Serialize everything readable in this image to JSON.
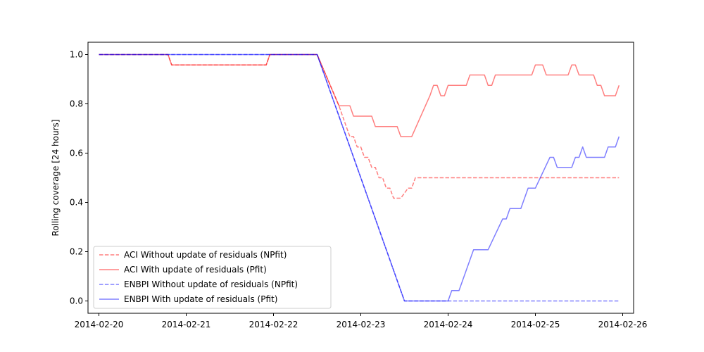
{
  "chart_data": {
    "type": "line",
    "title": "",
    "xlabel": "",
    "ylabel": "Rolling coverage [24 hours]",
    "xlim": [
      "2014-02-20",
      "2014-02-26"
    ],
    "ylim": [
      -0.05,
      1.05
    ],
    "grid": false,
    "legend_position": "lower-left",
    "x_ticks": [
      "2014-02-20",
      "2014-02-21",
      "2014-02-22",
      "2014-02-23",
      "2014-02-24",
      "2014-02-25",
      "2014-02-26"
    ],
    "y_ticks": [
      "0.0",
      "0.2",
      "0.4",
      "0.6",
      "0.8",
      "1.0"
    ],
    "series": [
      {
        "name": "ACI Without update of residuals (NPfit)",
        "color": "#ff0000",
        "style": "dashed",
        "points": [
          [
            "2014-02-20 00:00",
            1.0
          ],
          [
            "2014-02-20 19:00",
            1.0
          ],
          [
            "2014-02-20 20:00",
            0.958
          ],
          [
            "2014-02-21 22:00",
            0.958
          ],
          [
            "2014-02-21 23:00",
            1.0
          ],
          [
            "2014-02-22 12:00",
            1.0
          ],
          [
            "2014-02-22 18:00",
            0.792
          ],
          [
            "2014-02-22 19:00",
            0.75
          ],
          [
            "2014-02-22 20:00",
            0.708
          ],
          [
            "2014-02-22 21:00",
            0.667
          ],
          [
            "2014-02-22 22:00",
            0.667
          ],
          [
            "2014-02-22 23:00",
            0.625
          ],
          [
            "2014-02-23 00:00",
            0.625
          ],
          [
            "2014-02-23 01:00",
            0.583
          ],
          [
            "2014-02-23 02:00",
            0.583
          ],
          [
            "2014-02-23 03:00",
            0.542
          ],
          [
            "2014-02-23 04:00",
            0.542
          ],
          [
            "2014-02-23 05:00",
            0.5
          ],
          [
            "2014-02-23 06:00",
            0.5
          ],
          [
            "2014-02-23 07:00",
            0.458
          ],
          [
            "2014-02-23 08:00",
            0.458
          ],
          [
            "2014-02-23 09:00",
            0.417
          ],
          [
            "2014-02-23 11:00",
            0.417
          ],
          [
            "2014-02-23 13:00",
            0.458
          ],
          [
            "2014-02-23 14:00",
            0.458
          ],
          [
            "2014-02-23 15:00",
            0.5
          ],
          [
            "2014-02-25 23:00",
            0.5
          ]
        ]
      },
      {
        "name": "ACI With update of residuals (Pfit)",
        "color": "#ff0000",
        "style": "solid",
        "points": [
          [
            "2014-02-20 00:00",
            1.0
          ],
          [
            "2014-02-20 19:00",
            1.0
          ],
          [
            "2014-02-20 20:00",
            0.958
          ],
          [
            "2014-02-21 22:00",
            0.958
          ],
          [
            "2014-02-21 23:00",
            1.0
          ],
          [
            "2014-02-22 12:00",
            1.0
          ],
          [
            "2014-02-22 18:00",
            0.792
          ],
          [
            "2014-02-22 21:00",
            0.792
          ],
          [
            "2014-02-22 22:00",
            0.75
          ],
          [
            "2014-02-23 03:00",
            0.75
          ],
          [
            "2014-02-23 04:00",
            0.708
          ],
          [
            "2014-02-23 10:00",
            0.708
          ],
          [
            "2014-02-23 11:00",
            0.667
          ],
          [
            "2014-02-23 14:00",
            0.667
          ],
          [
            "2014-02-23 19:00",
            0.833
          ],
          [
            "2014-02-23 20:00",
            0.875
          ],
          [
            "2014-02-23 21:00",
            0.875
          ],
          [
            "2014-02-23 22:00",
            0.833
          ],
          [
            "2014-02-23 23:00",
            0.833
          ],
          [
            "2014-02-24 00:00",
            0.875
          ],
          [
            "2014-02-24 05:00",
            0.875
          ],
          [
            "2014-02-24 06:00",
            0.917
          ],
          [
            "2014-02-24 10:00",
            0.917
          ],
          [
            "2014-02-24 11:00",
            0.875
          ],
          [
            "2014-02-24 12:00",
            0.875
          ],
          [
            "2014-02-24 13:00",
            0.917
          ],
          [
            "2014-02-24 23:00",
            0.917
          ],
          [
            "2014-02-25 00:00",
            0.958
          ],
          [
            "2014-02-25 02:00",
            0.958
          ],
          [
            "2014-02-25 03:00",
            0.917
          ],
          [
            "2014-02-25 09:00",
            0.917
          ],
          [
            "2014-02-25 10:00",
            0.958
          ],
          [
            "2014-02-25 11:00",
            0.958
          ],
          [
            "2014-02-25 12:00",
            0.917
          ],
          [
            "2014-02-25 16:00",
            0.917
          ],
          [
            "2014-02-25 17:00",
            0.875
          ],
          [
            "2014-02-25 18:00",
            0.875
          ],
          [
            "2014-02-25 19:00",
            0.833
          ],
          [
            "2014-02-25 22:00",
            0.833
          ],
          [
            "2014-02-25 23:00",
            0.875
          ]
        ]
      },
      {
        "name": "ENBPI Without update of residuals (NPfit)",
        "color": "#0000ff",
        "style": "dashed",
        "points": [
          [
            "2014-02-20 00:00",
            1.0
          ],
          [
            "2014-02-22 12:00",
            1.0
          ],
          [
            "2014-02-23 12:00",
            0.0
          ],
          [
            "2014-02-25 23:00",
            0.0
          ]
        ]
      },
      {
        "name": "ENBPI With update of residuals (Pfit)",
        "color": "#0000ff",
        "style": "solid",
        "points": [
          [
            "2014-02-20 00:00",
            1.0
          ],
          [
            "2014-02-22 12:00",
            1.0
          ],
          [
            "2014-02-23 12:00",
            0.0
          ],
          [
            "2014-02-24 00:00",
            0.0
          ],
          [
            "2014-02-24 01:00",
            0.042
          ],
          [
            "2014-02-24 03:00",
            0.042
          ],
          [
            "2014-02-24 07:00",
            0.208
          ],
          [
            "2014-02-24 11:00",
            0.208
          ],
          [
            "2014-02-24 15:00",
            0.333
          ],
          [
            "2014-02-24 16:00",
            0.333
          ],
          [
            "2014-02-24 17:00",
            0.375
          ],
          [
            "2014-02-24 20:00",
            0.375
          ],
          [
            "2014-02-24 22:00",
            0.458
          ],
          [
            "2014-02-25 00:00",
            0.458
          ],
          [
            "2014-02-25 04:00",
            0.583
          ],
          [
            "2014-02-25 05:00",
            0.583
          ],
          [
            "2014-02-25 06:00",
            0.542
          ],
          [
            "2014-02-25 10:00",
            0.542
          ],
          [
            "2014-02-25 11:00",
            0.583
          ],
          [
            "2014-02-25 12:00",
            0.583
          ],
          [
            "2014-02-25 13:00",
            0.625
          ],
          [
            "2014-02-25 14:00",
            0.583
          ],
          [
            "2014-02-25 19:00",
            0.583
          ],
          [
            "2014-02-25 20:00",
            0.625
          ],
          [
            "2014-02-25 22:00",
            0.625
          ],
          [
            "2014-02-25 23:00",
            0.667
          ]
        ]
      }
    ]
  }
}
